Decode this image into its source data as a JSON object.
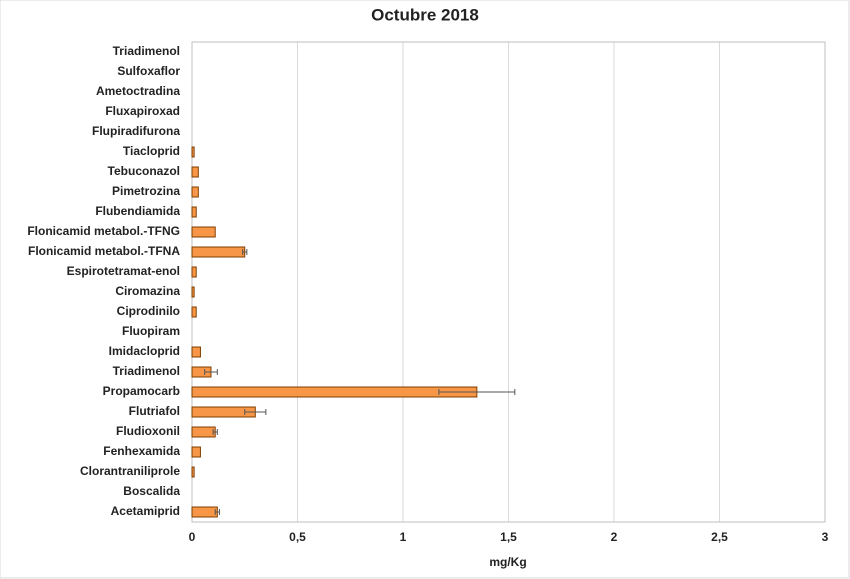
{
  "chart_data": {
    "type": "bar",
    "orientation": "horizontal",
    "title": "Octubre 2018",
    "x_label": "mg/Kg",
    "categories": [
      "Triadimenol",
      "Sulfoxaflor",
      "Ametoctradina",
      "Fluxapiroxad",
      "Flupiradifurona",
      "Tiacloprid",
      "Tebuconazol",
      "Pimetrozina",
      "Flubendiamida",
      "Flonicamid metabol.-TFNG",
      "Flonicamid metabol.-TFNA",
      "Espirotetramat-enol",
      "Ciromazina",
      "Ciprodinilo",
      "Fluopiram",
      "Imidacloprid",
      "Triadimenol",
      "Propamocarb",
      "Flutriafol",
      "Fludioxonil",
      "Fenhexamida",
      "Clorantraniliprole",
      "Boscalida",
      "Acetamiprid"
    ],
    "values": [
      0,
      0,
      0,
      0,
      0,
      0.01,
      0.03,
      0.03,
      0.02,
      0.11,
      0.25,
      0.02,
      0.01,
      0.02,
      0,
      0.04,
      0.09,
      1.35,
      0.3,
      0.11,
      0.04,
      0.01,
      0,
      0.12
    ],
    "errors": [
      null,
      null,
      null,
      null,
      null,
      null,
      null,
      null,
      null,
      null,
      0.01,
      null,
      null,
      null,
      null,
      null,
      0.03,
      0.18,
      0.05,
      0.01,
      null,
      null,
      null,
      0.01
    ],
    "color": "#f79646",
    "xlim": [
      0,
      3
    ],
    "xticks": [
      0,
      {
        "value": 0.5,
        "label": "0,5"
      },
      1,
      {
        "value": 1.5,
        "label": "1,5"
      },
      2,
      {
        "value": 2.5,
        "label": "2,5"
      },
      3
    ],
    "grid": true
  }
}
